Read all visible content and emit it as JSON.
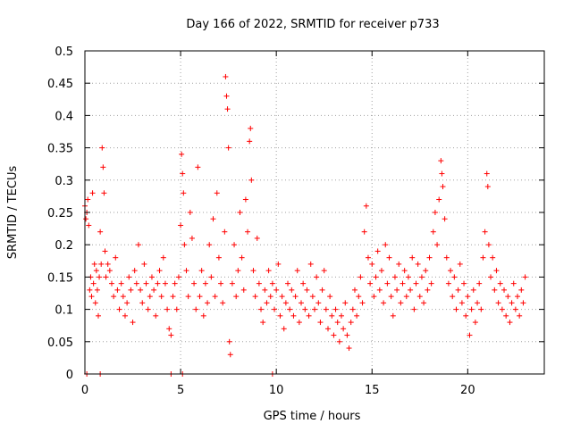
{
  "chart_data": {
    "type": "scatter",
    "title": "Day 166 of 2022, SRMTID for receiver p733",
    "xlabel": "GPS time / hours",
    "ylabel": "SRMTID / TECUs",
    "xlim": [
      0,
      24
    ],
    "ylim": [
      0,
      0.5
    ],
    "grid": true,
    "marker": "+",
    "color": "#ff0000",
    "x_ticks": [
      {
        "value": 0,
        "label": "0"
      },
      {
        "value": 5,
        "label": "5"
      },
      {
        "value": 10,
        "label": "10"
      },
      {
        "value": 15,
        "label": "15"
      },
      {
        "value": 20,
        "label": "20"
      }
    ],
    "y_ticks": [
      {
        "value": 0,
        "label": "0"
      },
      {
        "value": 0.05,
        "label": "0.05"
      },
      {
        "value": 0.1,
        "label": "0.1"
      },
      {
        "value": 0.15,
        "label": "0.15"
      },
      {
        "value": 0.2,
        "label": "0.2"
      },
      {
        "value": 0.25,
        "label": "0.25"
      },
      {
        "value": 0.3,
        "label": "0.3"
      },
      {
        "value": 0.35,
        "label": "0.35"
      },
      {
        "value": 0.4,
        "label": "0.4"
      },
      {
        "value": 0.45,
        "label": "0.45"
      },
      {
        "value": 0.5,
        "label": "0.5"
      }
    ],
    "series": [
      {
        "name": "SRMTID",
        "points": [
          [
            0.0,
            0.26
          ],
          [
            0.05,
            0.24
          ],
          [
            0.1,
            0.25
          ],
          [
            0.15,
            0.27
          ],
          [
            0.2,
            0.23
          ],
          [
            0.25,
            0.13
          ],
          [
            0.3,
            0.15
          ],
          [
            0.35,
            0.12
          ],
          [
            0.4,
            0.28
          ],
          [
            0.45,
            0.14
          ],
          [
            0.5,
            0.17
          ],
          [
            0.55,
            0.11
          ],
          [
            0.6,
            0.16
          ],
          [
            0.65,
            0.13
          ],
          [
            0.7,
            0.09
          ],
          [
            0.75,
            0.15
          ],
          [
            0.8,
            0.22
          ],
          [
            0.85,
            0.17
          ],
          [
            0.9,
            0.35
          ],
          [
            0.95,
            0.32
          ],
          [
            1.0,
            0.28
          ],
          [
            1.05,
            0.19
          ],
          [
            1.1,
            0.15
          ],
          [
            1.2,
            0.17
          ],
          [
            1.3,
            0.16
          ],
          [
            1.4,
            0.14
          ],
          [
            1.5,
            0.12
          ],
          [
            1.6,
            0.18
          ],
          [
            1.7,
            0.13
          ],
          [
            1.8,
            0.1
          ],
          [
            1.9,
            0.14
          ],
          [
            2.0,
            0.12
          ],
          [
            2.1,
            0.09
          ],
          [
            2.2,
            0.11
          ],
          [
            2.3,
            0.15
          ],
          [
            2.4,
            0.13
          ],
          [
            2.5,
            0.08
          ],
          [
            2.6,
            0.16
          ],
          [
            2.7,
            0.14
          ],
          [
            2.8,
            0.2
          ],
          [
            2.9,
            0.13
          ],
          [
            3.0,
            0.11
          ],
          [
            3.1,
            0.17
          ],
          [
            3.2,
            0.14
          ],
          [
            3.3,
            0.1
          ],
          [
            3.4,
            0.12
          ],
          [
            3.5,
            0.15
          ],
          [
            3.6,
            0.13
          ],
          [
            3.7,
            0.09
          ],
          [
            3.8,
            0.14
          ],
          [
            3.9,
            0.16
          ],
          [
            4.0,
            0.12
          ],
          [
            4.1,
            0.18
          ],
          [
            4.2,
            0.14
          ],
          [
            4.3,
            0.1
          ],
          [
            4.4,
            0.07
          ],
          [
            4.5,
            0.06
          ],
          [
            4.6,
            0.12
          ],
          [
            4.7,
            0.14
          ],
          [
            4.8,
            0.1
          ],
          [
            4.9,
            0.15
          ],
          [
            5.0,
            0.23
          ],
          [
            5.05,
            0.34
          ],
          [
            5.1,
            0.31
          ],
          [
            5.15,
            0.28
          ],
          [
            5.2,
            0.2
          ],
          [
            5.3,
            0.16
          ],
          [
            5.4,
            0.12
          ],
          [
            5.5,
            0.25
          ],
          [
            5.6,
            0.21
          ],
          [
            5.7,
            0.14
          ],
          [
            5.8,
            0.1
          ],
          [
            5.9,
            0.32
          ],
          [
            6.0,
            0.12
          ],
          [
            6.1,
            0.16
          ],
          [
            6.2,
            0.09
          ],
          [
            6.3,
            0.14
          ],
          [
            6.4,
            0.11
          ],
          [
            6.5,
            0.2
          ],
          [
            6.6,
            0.15
          ],
          [
            6.7,
            0.24
          ],
          [
            6.8,
            0.12
          ],
          [
            6.9,
            0.28
          ],
          [
            7.0,
            0.18
          ],
          [
            7.1,
            0.14
          ],
          [
            7.2,
            0.11
          ],
          [
            7.3,
            0.22
          ],
          [
            7.35,
            0.46
          ],
          [
            7.4,
            0.43
          ],
          [
            7.45,
            0.41
          ],
          [
            7.5,
            0.35
          ],
          [
            7.55,
            0.05
          ],
          [
            7.6,
            0.03
          ],
          [
            7.7,
            0.14
          ],
          [
            7.8,
            0.2
          ],
          [
            7.9,
            0.12
          ],
          [
            8.0,
            0.16
          ],
          [
            8.1,
            0.25
          ],
          [
            8.2,
            0.18
          ],
          [
            8.3,
            0.13
          ],
          [
            8.4,
            0.27
          ],
          [
            8.5,
            0.22
          ],
          [
            8.6,
            0.36
          ],
          [
            8.65,
            0.38
          ],
          [
            8.7,
            0.3
          ],
          [
            8.8,
            0.16
          ],
          [
            8.9,
            0.12
          ],
          [
            9.0,
            0.21
          ],
          [
            9.1,
            0.14
          ],
          [
            9.2,
            0.1
          ],
          [
            9.3,
            0.08
          ],
          [
            9.4,
            0.13
          ],
          [
            9.5,
            0.11
          ],
          [
            9.6,
            0.16
          ],
          [
            9.7,
            0.12
          ],
          [
            9.8,
            0.14
          ],
          [
            9.9,
            0.1
          ],
          [
            10.0,
            0.13
          ],
          [
            10.1,
            0.17
          ],
          [
            10.2,
            0.09
          ],
          [
            10.3,
            0.12
          ],
          [
            10.4,
            0.07
          ],
          [
            10.5,
            0.11
          ],
          [
            10.6,
            0.14
          ],
          [
            10.7,
            0.1
          ],
          [
            10.8,
            0.13
          ],
          [
            10.9,
            0.09
          ],
          [
            11.0,
            0.12
          ],
          [
            11.1,
            0.16
          ],
          [
            11.2,
            0.08
          ],
          [
            11.3,
            0.11
          ],
          [
            11.4,
            0.14
          ],
          [
            11.5,
            0.1
          ],
          [
            11.6,
            0.13
          ],
          [
            11.7,
            0.09
          ],
          [
            11.8,
            0.17
          ],
          [
            11.9,
            0.12
          ],
          [
            12.0,
            0.1
          ],
          [
            12.1,
            0.15
          ],
          [
            12.2,
            0.11
          ],
          [
            12.3,
            0.08
          ],
          [
            12.4,
            0.13
          ],
          [
            12.5,
            0.16
          ],
          [
            12.6,
            0.1
          ],
          [
            12.7,
            0.07
          ],
          [
            12.8,
            0.12
          ],
          [
            12.9,
            0.09
          ],
          [
            13.0,
            0.06
          ],
          [
            13.1,
            0.1
          ],
          [
            13.2,
            0.08
          ],
          [
            13.3,
            0.05
          ],
          [
            13.4,
            0.09
          ],
          [
            13.5,
            0.07
          ],
          [
            13.6,
            0.11
          ],
          [
            13.7,
            0.06
          ],
          [
            13.8,
            0.04
          ],
          [
            13.9,
            0.08
          ],
          [
            14.0,
            0.1
          ],
          [
            14.1,
            0.13
          ],
          [
            14.2,
            0.09
          ],
          [
            14.3,
            0.12
          ],
          [
            14.4,
            0.15
          ],
          [
            14.5,
            0.11
          ],
          [
            14.6,
            0.22
          ],
          [
            14.7,
            0.26
          ],
          [
            14.8,
            0.18
          ],
          [
            14.9,
            0.14
          ],
          [
            15.0,
            0.17
          ],
          [
            15.1,
            0.12
          ],
          [
            15.2,
            0.15
          ],
          [
            15.3,
            0.19
          ],
          [
            15.4,
            0.13
          ],
          [
            15.5,
            0.16
          ],
          [
            15.6,
            0.11
          ],
          [
            15.7,
            0.2
          ],
          [
            15.8,
            0.14
          ],
          [
            15.9,
            0.18
          ],
          [
            16.0,
            0.12
          ],
          [
            16.1,
            0.09
          ],
          [
            16.2,
            0.15
          ],
          [
            16.3,
            0.13
          ],
          [
            16.4,
            0.17
          ],
          [
            16.5,
            0.11
          ],
          [
            16.6,
            0.14
          ],
          [
            16.7,
            0.16
          ],
          [
            16.8,
            0.12
          ],
          [
            16.9,
            0.15
          ],
          [
            17.0,
            0.13
          ],
          [
            17.1,
            0.18
          ],
          [
            17.2,
            0.1
          ],
          [
            17.3,
            0.14
          ],
          [
            17.4,
            0.17
          ],
          [
            17.5,
            0.12
          ],
          [
            17.6,
            0.15
          ],
          [
            17.7,
            0.11
          ],
          [
            17.8,
            0.16
          ],
          [
            17.9,
            0.13
          ],
          [
            18.0,
            0.18
          ],
          [
            18.1,
            0.14
          ],
          [
            18.2,
            0.22
          ],
          [
            18.3,
            0.25
          ],
          [
            18.4,
            0.2
          ],
          [
            18.5,
            0.27
          ],
          [
            18.6,
            0.33
          ],
          [
            18.65,
            0.31
          ],
          [
            18.7,
            0.29
          ],
          [
            18.8,
            0.24
          ],
          [
            18.9,
            0.18
          ],
          [
            19.0,
            0.14
          ],
          [
            19.1,
            0.16
          ],
          [
            19.2,
            0.12
          ],
          [
            19.3,
            0.15
          ],
          [
            19.4,
            0.1
          ],
          [
            19.5,
            0.13
          ],
          [
            19.6,
            0.17
          ],
          [
            19.7,
            0.11
          ],
          [
            19.8,
            0.14
          ],
          [
            19.9,
            0.09
          ],
          [
            20.0,
            0.12
          ],
          [
            20.1,
            0.06
          ],
          [
            20.2,
            0.1
          ],
          [
            20.3,
            0.13
          ],
          [
            20.4,
            0.08
          ],
          [
            20.5,
            0.11
          ],
          [
            20.6,
            0.14
          ],
          [
            20.7,
            0.1
          ],
          [
            20.8,
            0.18
          ],
          [
            20.9,
            0.22
          ],
          [
            21.0,
            0.31
          ],
          [
            21.05,
            0.29
          ],
          [
            21.1,
            0.2
          ],
          [
            21.2,
            0.15
          ],
          [
            21.3,
            0.18
          ],
          [
            21.4,
            0.13
          ],
          [
            21.5,
            0.16
          ],
          [
            21.6,
            0.11
          ],
          [
            21.7,
            0.14
          ],
          [
            21.8,
            0.1
          ],
          [
            21.9,
            0.13
          ],
          [
            22.0,
            0.09
          ],
          [
            22.1,
            0.12
          ],
          [
            22.2,
            0.08
          ],
          [
            22.3,
            0.11
          ],
          [
            22.4,
            0.14
          ],
          [
            22.5,
            0.1
          ],
          [
            22.6,
            0.12
          ],
          [
            22.7,
            0.09
          ],
          [
            22.8,
            0.13
          ],
          [
            22.9,
            0.11
          ],
          [
            23.0,
            0.15
          ]
        ]
      },
      {
        "name": "zero-markers",
        "points": [
          [
            0.1,
            0
          ],
          [
            0.8,
            0
          ],
          [
            4.5,
            0
          ],
          [
            5.1,
            0
          ],
          [
            9.8,
            0
          ]
        ]
      }
    ]
  }
}
